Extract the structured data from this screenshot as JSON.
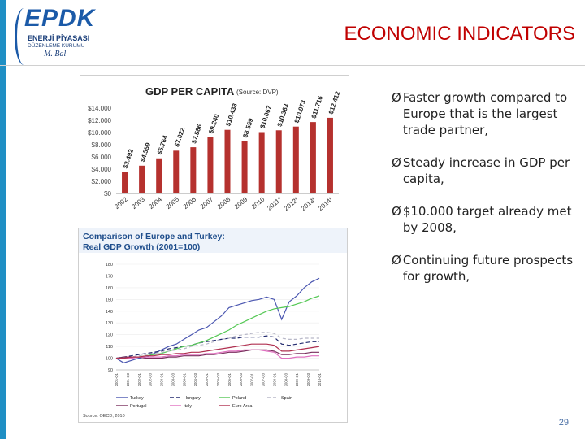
{
  "header": {
    "logo_main": "EPDK",
    "logo_line1": "ENERJİ PİYASASI",
    "logo_line2": "DÜZENLEME KURUMU",
    "logo_sig": "M. Bal",
    "title": "ECONOMIC INDICATORS"
  },
  "bullets": [
    {
      "marker": "Ø",
      "text": "Faster growth compared to Europe that is the largest trade partner,"
    },
    {
      "marker": "Ø",
      "text": "Steady increase in GDP per capita,"
    },
    {
      "marker": "Ø",
      "text": "$10.000 target already met by 2008,"
    },
    {
      "marker": "Ø",
      "text": "Continuing future prospects for growth,"
    }
  ],
  "page_number": "29",
  "colors": {
    "accent_bar": "#1f8fc4",
    "title": "#c00000",
    "bar": "#b5312e"
  },
  "chart_data": [
    {
      "type": "bar",
      "title": "GDP PER CAPITA",
      "subtitle": "(Source: DVP)",
      "categories": [
        "2002",
        "2003",
        "2004",
        "2005",
        "2006",
        "2007",
        "2008",
        "2009",
        "2010",
        "2011*",
        "2012*",
        "2013*",
        "2014*"
      ],
      "values": [
        3492,
        4559,
        5764,
        7022,
        7586,
        9240,
        10438,
        8559,
        10067,
        10363,
        10973,
        11716,
        12412
      ],
      "value_labels": [
        "$3.492",
        "$4.559",
        "$5.764",
        "$7.022",
        "$7.586",
        "$9.240",
        "$10.438",
        "$8.559",
        "$10.067",
        "$10.363",
        "$10.973",
        "$11.716",
        "$12.412"
      ],
      "yticks": [
        "$0",
        "$2.000",
        "$4.000",
        "$6.000",
        "$8.000",
        "$10.000",
        "$12.000",
        "$14.000"
      ],
      "ylim": [
        0,
        14000
      ],
      "color": "#b5312e"
    },
    {
      "type": "line",
      "title": "Comparison of Europe and Turkey: Real GDP Growth (2001=100)",
      "source": "Source: OECD, 2010",
      "ylim": [
        90,
        180
      ],
      "yticks": [
        "90",
        "100",
        "110",
        "120",
        "130",
        "140",
        "150",
        "160",
        "170",
        "180"
      ],
      "x_labels": [
        "2001-Q1",
        "2001-Q3",
        "2002-Q1",
        "2002-Q3",
        "2003-Q1",
        "2003-Q3",
        "2004-Q1",
        "2004-Q3",
        "2005-Q1",
        "2005-Q3",
        "2006-Q1",
        "2006-Q3",
        "2007-Q1",
        "2007-Q3",
        "2008-Q1",
        "2008-Q3",
        "2009-Q1",
        "2009-Q3",
        "2010-Q1"
      ],
      "series": [
        {
          "name": "Turkey",
          "color": "#4a56b0",
          "dash": "",
          "values": [
            100,
            96,
            98,
            100,
            101,
            104,
            107,
            110,
            112,
            116,
            120,
            124,
            126,
            131,
            136,
            143,
            145,
            147,
            149,
            150,
            152,
            150,
            133,
            148,
            153,
            160,
            165,
            168
          ]
        },
        {
          "name": "Hungary",
          "color": "#222a6e",
          "dash": "5,3",
          "values": [
            100,
            101,
            102,
            103,
            104,
            105,
            106,
            108,
            109,
            110,
            111,
            113,
            114,
            115,
            116,
            117,
            117,
            118,
            118,
            118,
            119,
            118,
            112,
            111,
            112,
            113,
            114,
            114
          ]
        },
        {
          "name": "Poland",
          "color": "#55c855",
          "dash": "",
          "values": [
            100,
            100,
            101,
            101,
            102,
            103,
            104,
            106,
            108,
            110,
            111,
            113,
            115,
            118,
            121,
            124,
            128,
            131,
            134,
            137,
            140,
            142,
            143,
            144,
            146,
            148,
            151,
            153
          ]
        },
        {
          "name": "Spain",
          "color": "#b8b8c8",
          "dash": "4,3",
          "values": [
            100,
            101,
            101,
            102,
            103,
            104,
            105,
            106,
            107,
            108,
            110,
            111,
            112,
            114,
            116,
            117,
            119,
            120,
            121,
            122,
            122,
            121,
            117,
            116,
            116,
            117,
            117,
            117
          ]
        },
        {
          "name": "Portugal",
          "color": "#7a2e5e",
          "dash": "",
          "values": [
            100,
            101,
            101,
            101,
            100,
            100,
            100,
            101,
            101,
            102,
            102,
            102,
            103,
            103,
            104,
            105,
            105,
            106,
            107,
            107,
            107,
            106,
            103,
            103,
            104,
            104,
            105,
            105
          ]
        },
        {
          "name": "Italy",
          "color": "#e070c0",
          "dash": "",
          "values": [
            100,
            100,
            100,
            101,
            101,
            101,
            101,
            102,
            102,
            103,
            103,
            103,
            104,
            104,
            105,
            106,
            106,
            107,
            107,
            107,
            106,
            105,
            100,
            100,
            101,
            101,
            102,
            102
          ]
        },
        {
          "name": "Euro Area",
          "color": "#b03050",
          "dash": "",
          "values": [
            100,
            100,
            101,
            101,
            102,
            102,
            103,
            103,
            104,
            104,
            105,
            105,
            106,
            107,
            108,
            109,
            110,
            111,
            112,
            112,
            112,
            111,
            106,
            106,
            107,
            108,
            109,
            110
          ]
        }
      ]
    }
  ]
}
